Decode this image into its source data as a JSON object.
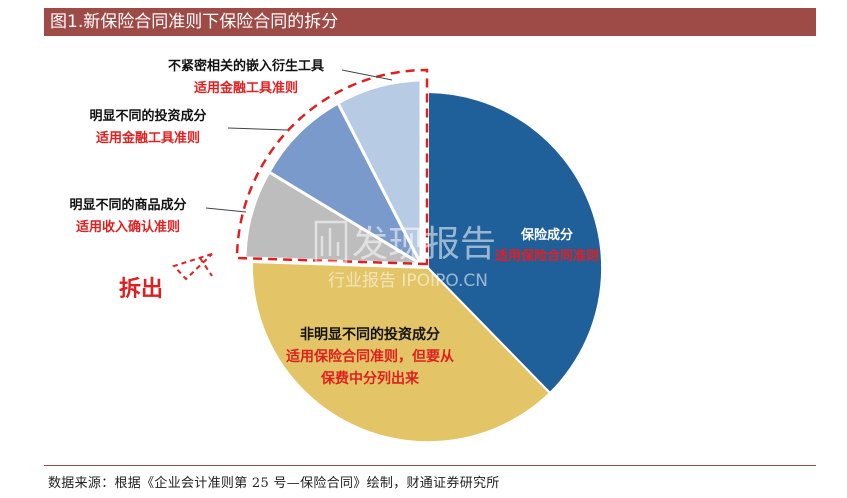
{
  "title": "图1.新保险合同准则下保险合同的拆分",
  "footer": "数据来源：根据《企业会计准则第 25 号—保险合同》绘制，财通证券研究所",
  "colors": {
    "title_bg": "#9E4A47",
    "insurance": "#1F5F9A",
    "non_distinct_investment": "#E3C567",
    "distinct_goods": "#BDBDBD",
    "distinct_investment": "#7A9ACB",
    "embedded_derivatives": "#B8CBE4",
    "red_text": "#E02020"
  },
  "segments": [
    {
      "key": "insurance",
      "name": "保险成分",
      "standard": "适用保险合同准则",
      "share": 0.335,
      "split_out": false
    },
    {
      "key": "non_distinct_investment",
      "name": "非明显不同的投资成分",
      "standard_line1": "适用保险合同准则，但要从",
      "standard_line2": "保费中分列出来",
      "share": 0.365,
      "split_out": false
    },
    {
      "key": "distinct_goods",
      "name": "明显不同的商品成分",
      "standard": "适用收入确认准则",
      "share": 0.085,
      "split_out": true
    },
    {
      "key": "distinct_investment",
      "name": "明显不同的投资成分",
      "standard": "适用金融工具准则",
      "share": 0.13,
      "split_out": true
    },
    {
      "key": "embedded_derivatives",
      "name": "不紧密相关的嵌入衍生工具",
      "standard": "适用金融工具准则",
      "share": 0.085,
      "split_out": true
    }
  ],
  "split_label": "拆出",
  "watermark": {
    "brand": "发现报告",
    "sub": "行业报告 IPOIPO.CN"
  }
}
